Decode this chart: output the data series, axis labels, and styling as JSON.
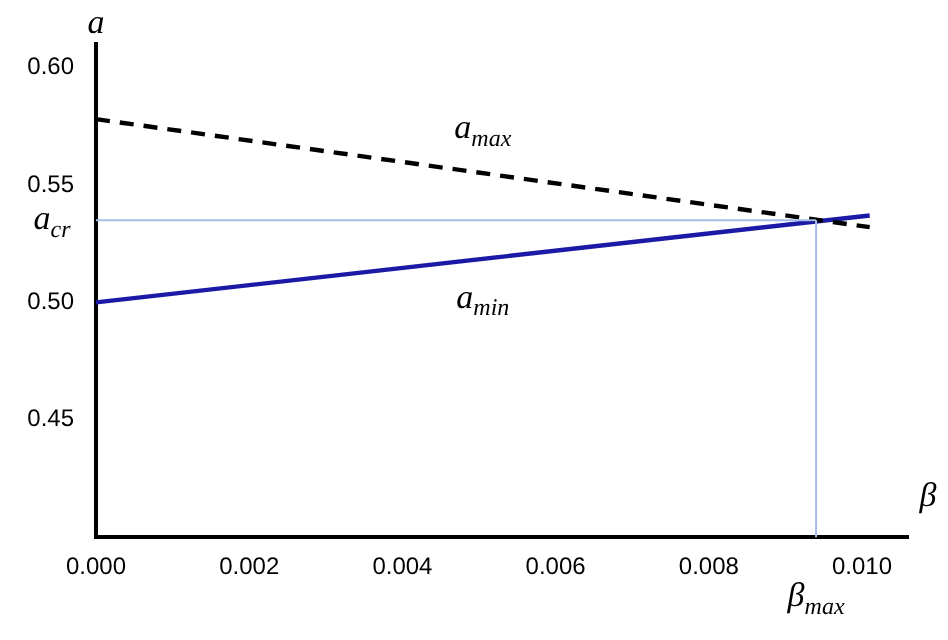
{
  "chart_data": {
    "type": "line",
    "xlabel": "β",
    "ylabel": "a",
    "xlim": [
      0,
      0.0106
    ],
    "ylim": [
      0.4,
      0.61
    ],
    "grid": false,
    "legend": false,
    "marker": "none",
    "xticks": [
      {
        "value": 0,
        "label": "0.000"
      },
      {
        "value": 0.002,
        "label": "0.002"
      },
      {
        "value": 0.004,
        "label": "0.004"
      },
      {
        "value": 0.006,
        "label": "0.006"
      },
      {
        "value": 0.008,
        "label": "0.008"
      },
      {
        "value": 0.01,
        "label": "0.010"
      }
    ],
    "yticks": [
      {
        "value": 0.45,
        "label": "0.45"
      },
      {
        "value": 0.5,
        "label": "0.50"
      },
      {
        "value": 0.55,
        "label": "0.55"
      },
      {
        "value": 0.6,
        "label": "0.60"
      }
    ],
    "x": [
      0,
      0.0101
    ],
    "series": [
      {
        "name": "a$_{max}$",
        "color": "#000000",
        "line_style": "dashed",
        "values": [
          0.578,
          0.532
        ]
      },
      {
        "name": "a$_{min}$",
        "color": "#1a1aa6",
        "line_style": "solid",
        "values": [
          0.5,
          0.537
        ]
      }
    ],
    "ref_lines": [
      {
        "axis": "y",
        "value": 0.535,
        "label": "a$_{cr}$",
        "color": "#a6bde8"
      },
      {
        "axis": "x",
        "value": 0.0094,
        "label": "β$_{max}$",
        "color": "#a6bde8"
      }
    ]
  }
}
